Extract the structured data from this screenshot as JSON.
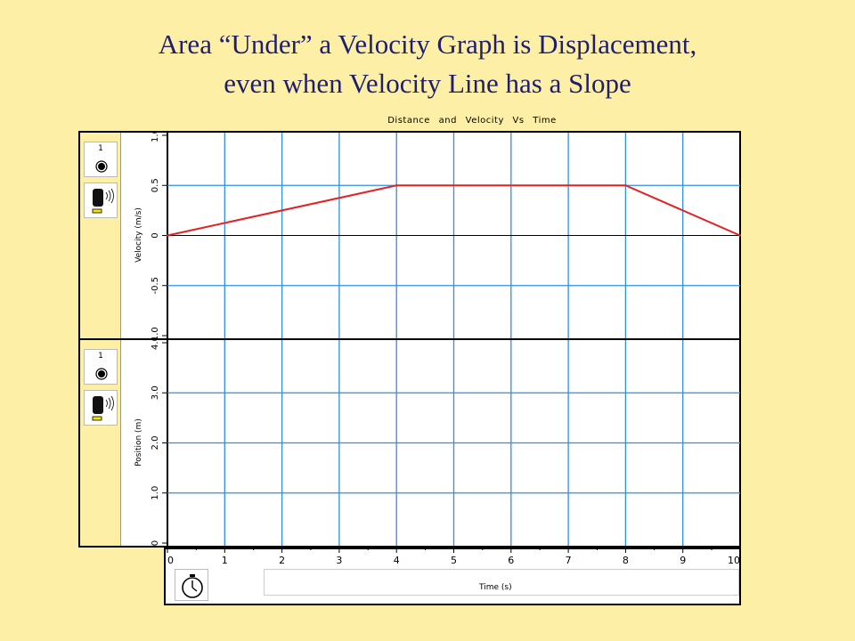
{
  "slide": {
    "title_line1": "Area “Under” a Velocity Graph is Displacement,",
    "title_line2": "even when Velocity Line has a Slope"
  },
  "sensors": {
    "velocity_sensor_number": "1",
    "position_sensor_number": "1"
  },
  "colors": {
    "background": "#fdf0a6",
    "grid": "#2f8fe0",
    "series": "#e32222",
    "axis": "#000000"
  },
  "icons": [
    "record-icon",
    "motion-detector-icon",
    "stopwatch-icon"
  ],
  "chart_data": [
    {
      "type": "line",
      "title": "Distance and Velocity Vs Time",
      "xlabel": "Time (s)",
      "ylabel": "Velocity (m/s)",
      "xlim": [
        0,
        10
      ],
      "ylim": [
        -1.0,
        1.0
      ],
      "y_ticks": [
        "1.0",
        "0.5",
        "0",
        "-0.5",
        "-1.0"
      ],
      "grid": true,
      "series": [
        {
          "x": [
            0,
            4,
            8,
            10
          ],
          "y": [
            0,
            0.5,
            0.5,
            0
          ]
        }
      ]
    },
    {
      "type": "line",
      "xlabel": "Time (s)",
      "ylabel": "Position (m)",
      "xlim": [
        0,
        10
      ],
      "ylim": [
        0,
        4.0
      ],
      "y_ticks": [
        "4.0",
        "3.0",
        "2.0",
        "1.0",
        "0"
      ],
      "x_ticks": [
        "0",
        "1",
        "2",
        "3",
        "4",
        "5",
        "6",
        "7",
        "8",
        "9",
        "10"
      ],
      "grid": true,
      "series": []
    }
  ]
}
